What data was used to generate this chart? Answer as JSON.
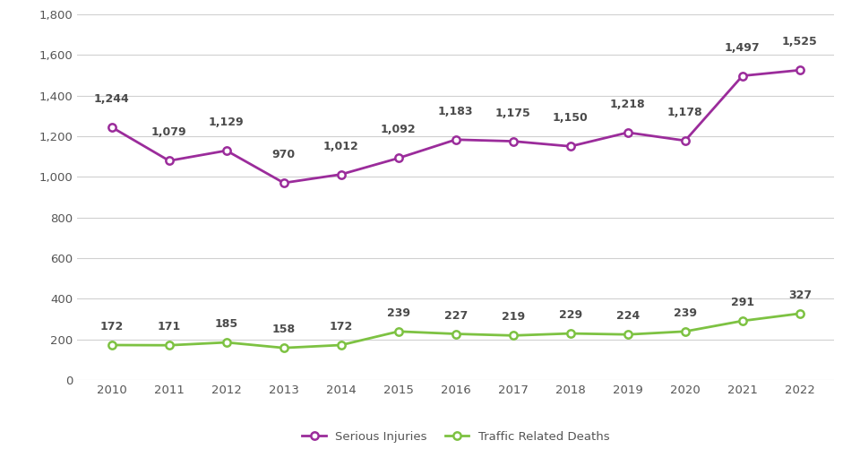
{
  "years": [
    2010,
    2011,
    2012,
    2013,
    2014,
    2015,
    2016,
    2017,
    2018,
    2019,
    2020,
    2021,
    2022
  ],
  "serious_injuries": [
    1244,
    1079,
    1129,
    970,
    1012,
    1092,
    1183,
    1175,
    1150,
    1218,
    1178,
    1497,
    1525
  ],
  "traffic_deaths": [
    172,
    171,
    185,
    158,
    172,
    239,
    227,
    219,
    229,
    224,
    239,
    291,
    327
  ],
  "serious_injuries_color": "#9b2c9b",
  "traffic_deaths_color": "#7dc242",
  "label_color": "#4a4a4a",
  "background_color": "#ffffff",
  "grid_color": "#d0d0d0",
  "ylim": [
    0,
    1800
  ],
  "yticks": [
    0,
    200,
    400,
    600,
    800,
    1000,
    1200,
    1400,
    1600,
    1800
  ],
  "legend_labels": [
    "Serious Injuries",
    "Traffic Related Deaths"
  ],
  "marker_style": "o",
  "marker_size": 6,
  "line_width": 2.0,
  "label_fontsize": 9,
  "tick_fontsize": 9.5,
  "legend_fontsize": 9.5,
  "si_label_offsets": [
    18,
    18,
    18,
    18,
    18,
    18,
    18,
    18,
    18,
    18,
    18,
    18,
    18
  ],
  "td_label_offsets": [
    10,
    10,
    10,
    10,
    10,
    10,
    10,
    10,
    10,
    10,
    10,
    10,
    10
  ]
}
